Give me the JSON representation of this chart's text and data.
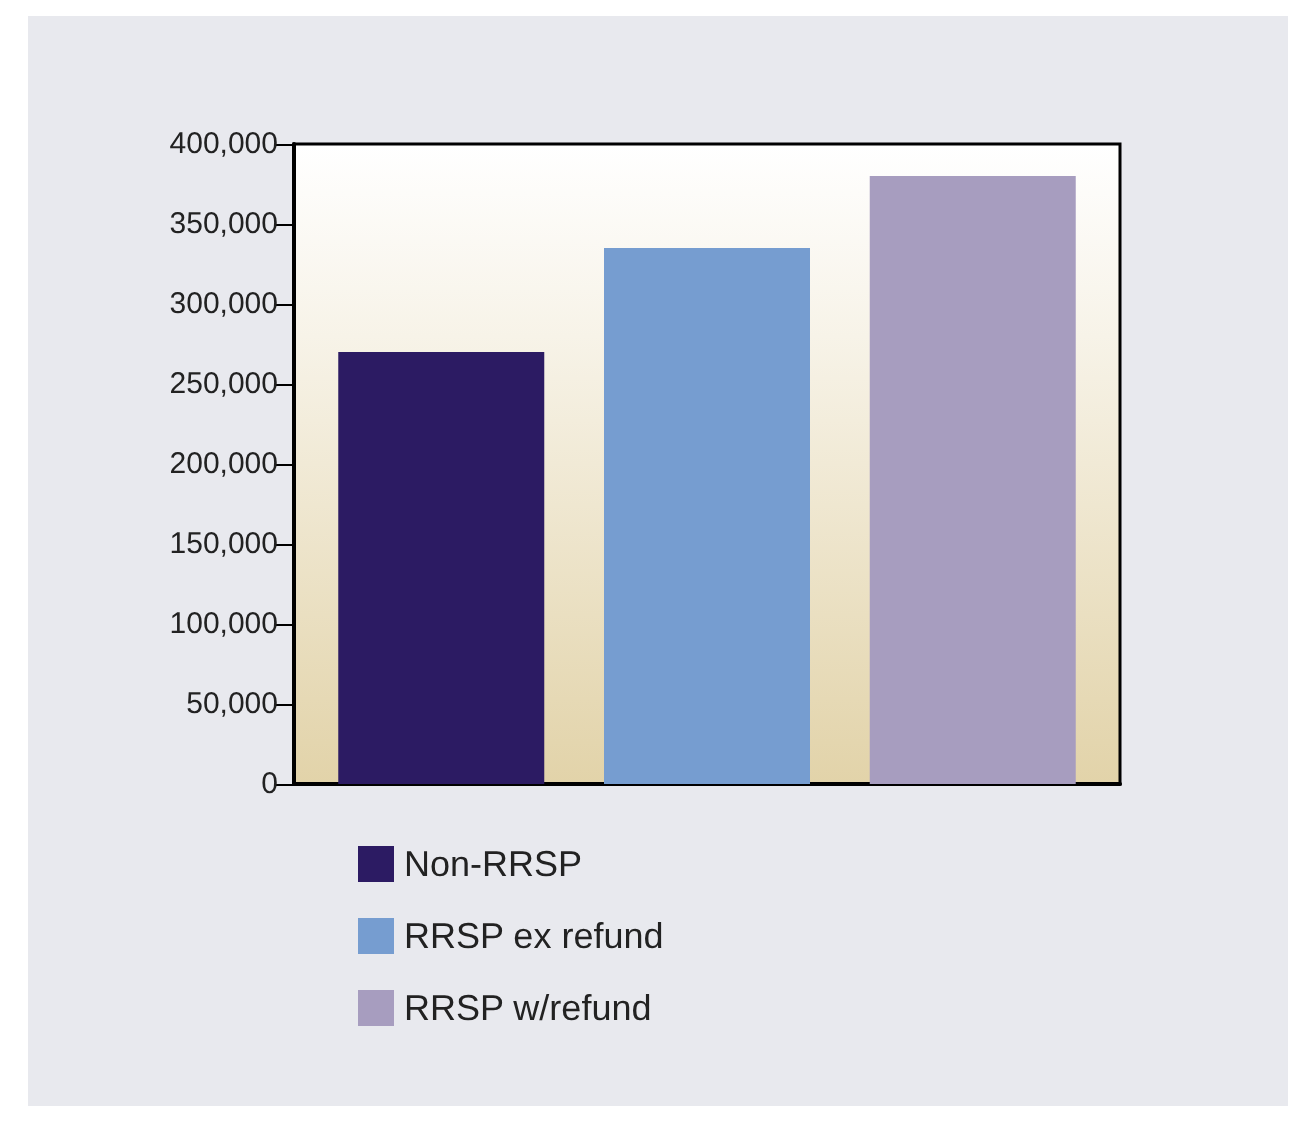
{
  "chart_data": {
    "type": "bar",
    "categories": [
      null
    ],
    "series": [
      {
        "name": "Non-RRSP",
        "color": "#2c1b63",
        "values": [
          270000
        ]
      },
      {
        "name": "RRSP ex refund",
        "color": "#769dd0",
        "values": [
          335000
        ]
      },
      {
        "name": "RRSP w/refund",
        "color": "#a79dbf",
        "values": [
          380000
        ]
      }
    ],
    "ylim": [
      0,
      400000
    ],
    "yticks": [
      0,
      {
        "value": 50000,
        "label": "50,000"
      },
      {
        "value": 100000,
        "label": "100,000"
      },
      {
        "value": 150000,
        "label": "150,000"
      },
      {
        "value": 200000,
        "label": "200,000"
      },
      {
        "value": 250000,
        "label": "250,000"
      },
      {
        "value": 300000,
        "label": "300,000"
      },
      {
        "value": 350000,
        "label": "350,000"
      },
      {
        "value": 400000,
        "label": "400,000"
      }
    ],
    "grid": false,
    "legend": "bottom"
  }
}
